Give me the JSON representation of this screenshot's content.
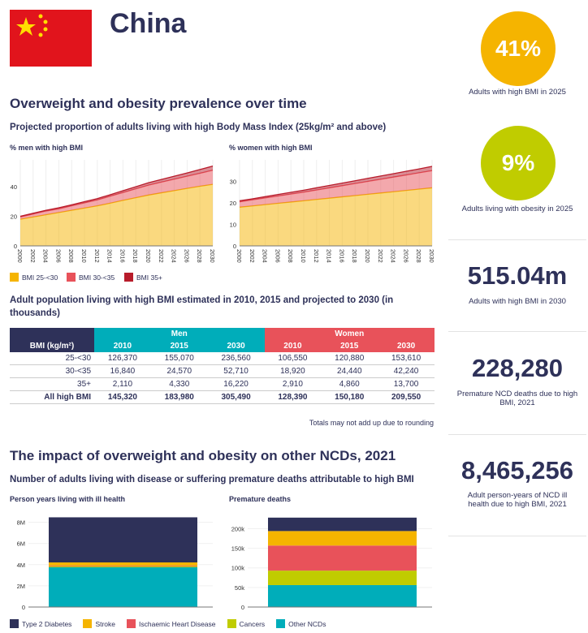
{
  "header": {
    "country": "China"
  },
  "kpis": [
    {
      "value": "41%",
      "label": "Adults with high BMI in 2025",
      "color": "#f5b400"
    },
    {
      "value": "9%",
      "label": "Adults living with obesity in 2025",
      "color": "#c0cc00"
    },
    {
      "value": "515.04m",
      "label": "Adults with high BMI in 2030"
    },
    {
      "value": "228,280",
      "label": "Premature NCD deaths due to high BMI, 2021"
    },
    {
      "value": "8,465,256",
      "label": "Adult person-years of NCD ill health due to high BMI, 2021"
    }
  ],
  "section1": {
    "title": "Overweight and obesity prevalence over time",
    "subtitle": "Projected proportion of adults living with high Body Mass Index (25kg/m² and above)"
  },
  "section2": {
    "title": "Adult population living with high BMI estimated in 2010, 2015 and projected to 2030 (in thousands)",
    "note": "Totals may not add up due to rounding"
  },
  "table": {
    "group_men": "Men",
    "group_women": "Women",
    "col0": "BMI (kg/m²)",
    "years": [
      "2010",
      "2015",
      "2030",
      "2010",
      "2015",
      "2030"
    ],
    "rows": [
      [
        "25-<30",
        "126,370",
        "155,070",
        "236,560",
        "106,550",
        "120,880",
        "153,610"
      ],
      [
        "30-<35",
        "16,840",
        "24,570",
        "52,710",
        "18,920",
        "24,440",
        "42,240"
      ],
      [
        "35+",
        "2,110",
        "4,330",
        "16,220",
        "2,910",
        "4,860",
        "13,700"
      ],
      [
        "All high BMI",
        "145,320",
        "183,980",
        "305,490",
        "128,390",
        "150,180",
        "209,550"
      ]
    ]
  },
  "section3": {
    "title": "The impact of overweight and obesity on other NCDs, 2021",
    "subtitle": "Number of adults living with disease or suffering premature deaths attributable to high BMI"
  },
  "chart_data": [
    {
      "type": "area",
      "title": "% men with high BMI",
      "x": [
        2000,
        2002,
        2004,
        2006,
        2008,
        2010,
        2012,
        2014,
        2016,
        2018,
        2020,
        2022,
        2024,
        2026,
        2028,
        2030
      ],
      "yticks": [
        0,
        20,
        40
      ],
      "ylim": [
        0,
        58
      ],
      "series": [
        {
          "name": "BMI 25-<30",
          "color": "#f5b400",
          "values": [
            18,
            19.5,
            21,
            22.5,
            24,
            25.5,
            27,
            28.8,
            30.7,
            32.5,
            34.3,
            35.8,
            37.3,
            38.8,
            40.2,
            41.5
          ]
        },
        {
          "name": "BMI 30-<35",
          "color": "#e8525a",
          "values": [
            1.5,
            2,
            2.5,
            2.5,
            3,
            3.5,
            4,
            4.7,
            5.3,
            6,
            6.7,
            7.2,
            7.7,
            8.2,
            8.8,
            9.5
          ]
        },
        {
          "name": "BMI 35+",
          "color": "#b81c2b",
          "values": [
            0.5,
            0.5,
            0.5,
            0.7,
            0.7,
            0.8,
            0.9,
            1,
            1.2,
            1.4,
            1.6,
            1.8,
            2,
            2.2,
            2.5,
            2.8
          ]
        }
      ]
    },
    {
      "type": "area",
      "title": "% women with high BMI",
      "x": [
        2000,
        2002,
        2004,
        2006,
        2008,
        2010,
        2012,
        2014,
        2016,
        2018,
        2020,
        2022,
        2024,
        2026,
        2028,
        2030
      ],
      "yticks": [
        0,
        10,
        20,
        30
      ],
      "ylim": [
        0,
        40
      ],
      "series": [
        {
          "name": "BMI 25-<30",
          "color": "#f5b400",
          "values": [
            18,
            18.6,
            19.2,
            19.8,
            20.4,
            21,
            21.6,
            22.2,
            22.8,
            23.4,
            24,
            24.6,
            25.2,
            25.8,
            26.4,
            27
          ]
        },
        {
          "name": "BMI 30-<35",
          "color": "#e8525a",
          "values": [
            2.5,
            2.8,
            3.1,
            3.4,
            3.7,
            4,
            4.4,
            4.8,
            5.2,
            5.6,
            6,
            6.4,
            6.8,
            7.2,
            7.6,
            8
          ]
        },
        {
          "name": "BMI 35+",
          "color": "#b81c2b",
          "values": [
            0.5,
            0.5,
            0.6,
            0.7,
            0.8,
            0.9,
            1,
            1.1,
            1.2,
            1.3,
            1.4,
            1.5,
            1.6,
            1.7,
            1.8,
            2
          ]
        }
      ]
    },
    {
      "type": "bar",
      "title": "Person years living with ill health",
      "yticks": [
        0,
        2000000,
        4000000,
        6000000,
        8000000
      ],
      "ytick_labels": [
        "0",
        "2M",
        "4M",
        "6M",
        "8M"
      ],
      "ylim": [
        0,
        8500000
      ],
      "series": [
        {
          "name": "Other NCDs",
          "color": "#00adba",
          "value": 3750000
        },
        {
          "name": "Cancers",
          "color": "#c0cc00",
          "value": 100000
        },
        {
          "name": "Ischaemic Heart Disease",
          "color": "#e8525a",
          "value": 60000
        },
        {
          "name": "Stroke",
          "color": "#f5b400",
          "value": 300000
        },
        {
          "name": "Type 2 Diabetes",
          "color": "#2e3159",
          "value": 4255256
        }
      ]
    },
    {
      "type": "bar",
      "title": "Premature deaths",
      "yticks": [
        0,
        50000,
        100000,
        150000,
        200000
      ],
      "ytick_labels": [
        "0",
        "50k",
        "100k",
        "150k",
        "200k"
      ],
      "ylim": [
        0,
        230000
      ],
      "series": [
        {
          "name": "Other NCDs",
          "color": "#00adba",
          "value": 56000
        },
        {
          "name": "Cancers",
          "color": "#c0cc00",
          "value": 37000
        },
        {
          "name": "Ischaemic Heart Disease",
          "color": "#e8525a",
          "value": 64000
        },
        {
          "name": "Stroke",
          "color": "#f5b400",
          "value": 37000
        },
        {
          "name": "Type 2 Diabetes",
          "color": "#2e3159",
          "value": 34280
        }
      ]
    }
  ],
  "legend_bmi": [
    "BMI 25-<30",
    "BMI 30-<35",
    "BMI 35+"
  ],
  "legend_ncd": [
    "Type 2 Diabetes",
    "Stroke",
    "Ischaemic Heart Disease",
    "Cancers",
    "Other NCDs"
  ]
}
